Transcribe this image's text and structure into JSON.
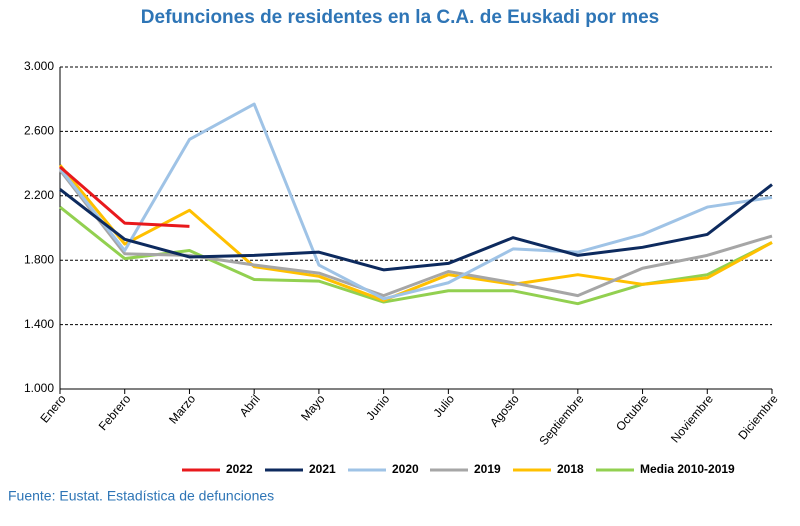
{
  "chart_data": {
    "type": "line",
    "title": "Defunciones de residentes en la C.A. de Euskadi por mes",
    "source": "Fuente: Eustat. Estadística de defunciones",
    "categories": [
      "Enero",
      "Febrero",
      "Marzo",
      "Abril",
      "Mayo",
      "Junio",
      "Julio",
      "Agosto",
      "Septiembre",
      "Octubre",
      "Noviembre",
      "Diciembre"
    ],
    "series": [
      {
        "name": "2022",
        "color": "#e8191c",
        "values": [
          2380,
          2030,
          2010,
          null,
          null,
          null,
          null,
          null,
          null,
          null,
          null,
          null
        ]
      },
      {
        "name": "2021",
        "color": "#0d2a5e",
        "values": [
          2240,
          1930,
          1820,
          1830,
          1850,
          1740,
          1780,
          1940,
          1830,
          1880,
          1960,
          2270
        ]
      },
      {
        "name": "2020",
        "color": "#9fc3e6",
        "values": [
          2370,
          1860,
          2550,
          2770,
          1770,
          1560,
          1660,
          1870,
          1850,
          1960,
          2130,
          2190
        ]
      },
      {
        "name": "2019",
        "color": "#a6a6a6",
        "values": [
          2360,
          1840,
          1830,
          1770,
          1720,
          1580,
          1730,
          1660,
          1580,
          1750,
          1830,
          1950
        ]
      },
      {
        "name": "2018",
        "color": "#ffc000",
        "values": [
          2390,
          1900,
          2110,
          1760,
          1700,
          1550,
          1710,
          1650,
          1710,
          1650,
          1690,
          1910
        ]
      },
      {
        "name": "Media 2010-2019",
        "color": "#92d050",
        "values": [
          2130,
          1810,
          1860,
          1680,
          1670,
          1540,
          1610,
          1610,
          1530,
          1650,
          1710,
          1910
        ]
      }
    ],
    "ylim": [
      1000,
      3000
    ],
    "yticks": [
      {
        "value": 1000,
        "label": "1.000"
      },
      {
        "value": 1400,
        "label": "1.400"
      },
      {
        "value": 1800,
        "label": "1.800"
      },
      {
        "value": 2200,
        "label": "2.200"
      },
      {
        "value": 2600,
        "label": "2.600"
      },
      {
        "value": 3000,
        "label": "3.000"
      }
    ],
    "grid": true
  }
}
